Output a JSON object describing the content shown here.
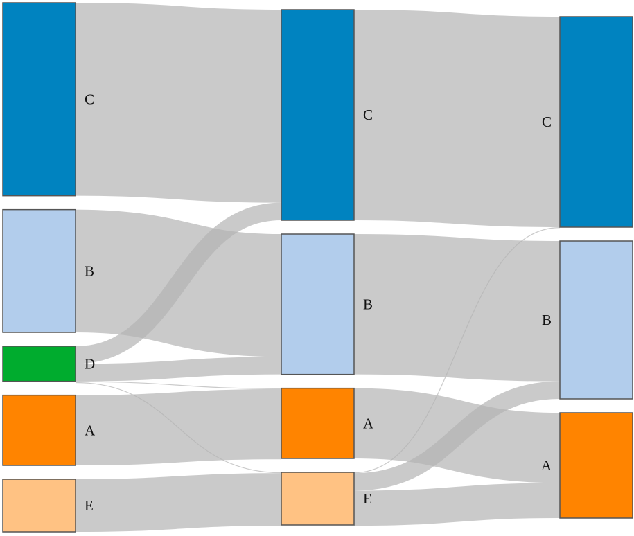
{
  "chart_data": {
    "type": "sankey",
    "title": "",
    "columns": [
      {
        "nodes": [
          {
            "id": "c0_C",
            "label": "C",
            "value": 55,
            "color": "#0083c0"
          },
          {
            "id": "c0_B",
            "label": "B",
            "value": 35,
            "color": "#b2cdec"
          },
          {
            "id": "c0_D",
            "label": "D",
            "value": 10,
            "color": "#00ac2e"
          },
          {
            "id": "c0_A",
            "label": "A",
            "value": 20,
            "color": "#ff8400"
          },
          {
            "id": "c0_E",
            "label": "E",
            "value": 15,
            "color": "#ffc283"
          }
        ]
      },
      {
        "nodes": [
          {
            "id": "c1_C",
            "label": "C",
            "value": 60,
            "color": "#0083c0"
          },
          {
            "id": "c1_B",
            "label": "B",
            "value": 40,
            "color": "#b2cdec"
          },
          {
            "id": "c1_A",
            "label": "A",
            "value": 20,
            "color": "#ff8400"
          },
          {
            "id": "c1_E",
            "label": "E",
            "value": 15,
            "color": "#ffc283"
          }
        ]
      },
      {
        "nodes": [
          {
            "id": "c2_C",
            "label": "C",
            "value": 60,
            "color": "#0083c0"
          },
          {
            "id": "c2_B",
            "label": "B",
            "value": 45,
            "color": "#b2cdec"
          },
          {
            "id": "c2_A",
            "label": "A",
            "value": 30,
            "color": "#ff8400"
          }
        ]
      }
    ],
    "links": [
      {
        "source": "c0_C",
        "target": "c1_C",
        "value": 55
      },
      {
        "source": "c0_B",
        "target": "c1_B",
        "value": 35
      },
      {
        "source": "c0_D",
        "target": "c1_C",
        "value": 5
      },
      {
        "source": "c0_D",
        "target": "c1_B",
        "value": 5
      },
      {
        "source": "c0_D",
        "target": "c1_A",
        "value": 0.15
      },
      {
        "source": "c0_D",
        "target": "c1_E",
        "value": 0.15
      },
      {
        "source": "c0_A",
        "target": "c1_A",
        "value": 20
      },
      {
        "source": "c0_E",
        "target": "c1_E",
        "value": 15
      },
      {
        "source": "c1_C",
        "target": "c2_C",
        "value": 60
      },
      {
        "source": "c1_B",
        "target": "c2_B",
        "value": 40
      },
      {
        "source": "c1_A",
        "target": "c2_A",
        "value": 20
      },
      {
        "source": "c1_E",
        "target": "c2_C",
        "value": 0.15
      },
      {
        "source": "c1_E",
        "target": "c2_B",
        "value": 5
      },
      {
        "source": "c1_E",
        "target": "c2_A",
        "value": 10
      }
    ],
    "link_color": "#b4b4b4",
    "node_border_color": "#555555"
  }
}
